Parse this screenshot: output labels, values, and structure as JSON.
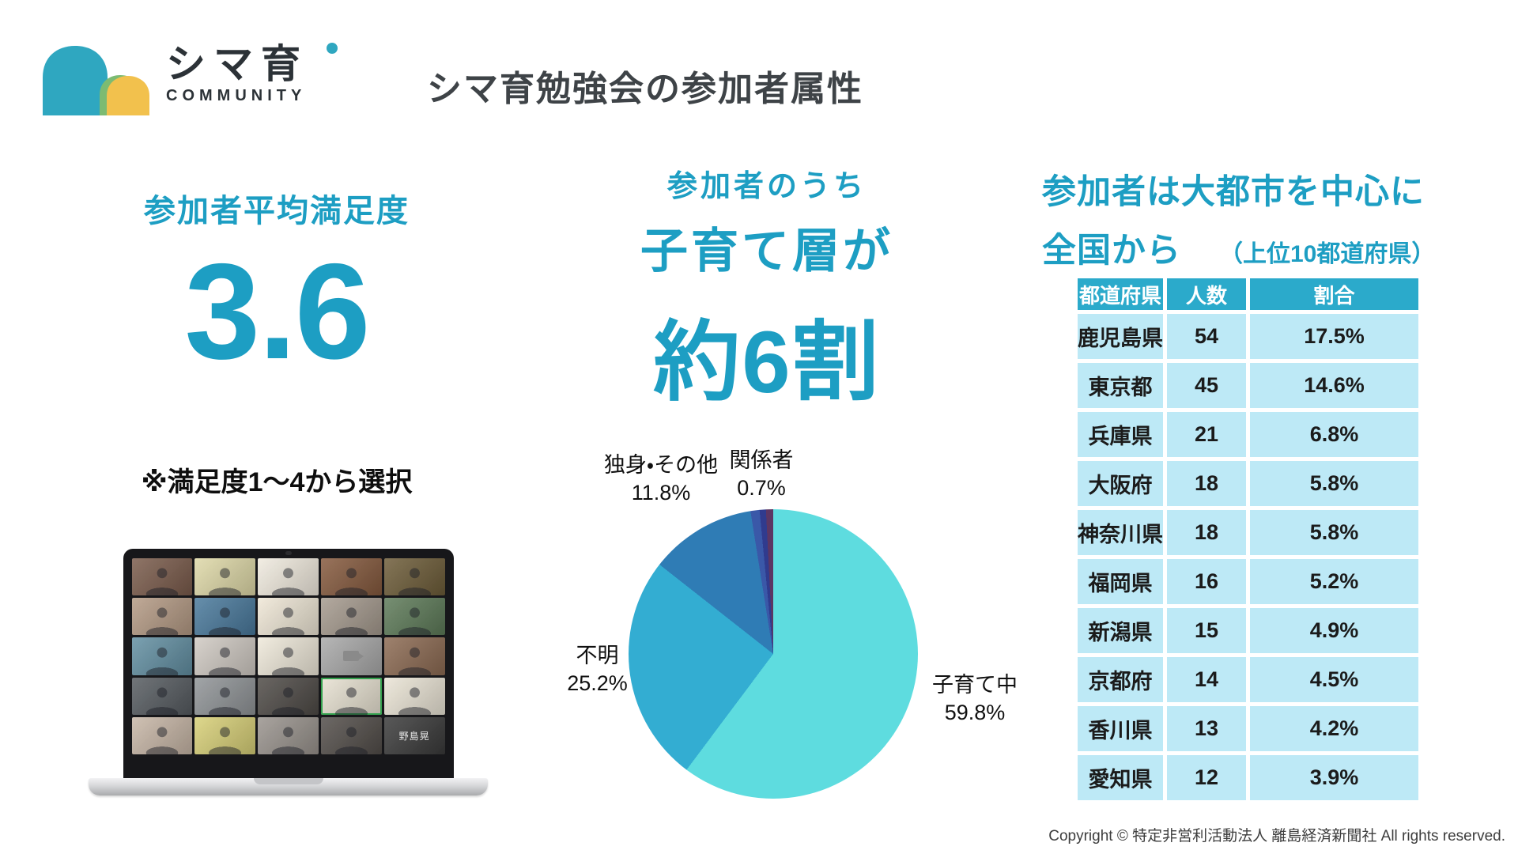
{
  "header": {
    "logo": {
      "jp": "シマ育",
      "en": "COMMUNITY"
    },
    "title": "シマ育勉強会の参加者属性"
  },
  "colors": {
    "accent_teal": "#1D9EC3",
    "title_ink": "#3E4347",
    "logo_teal": "#2FA7C0",
    "logo_yellow": "#F2C14D",
    "logo_green": "#7CBB72",
    "table_header_bg": "#2BAACB",
    "table_row_bg": "#BDE9F6"
  },
  "satisfaction": {
    "heading": "参加者平均満足度",
    "value": "3.6",
    "note": "※満足度1〜4から選択"
  },
  "laptop": {
    "tiles": [
      {
        "c": "#7a5b4b",
        "k": "p"
      },
      {
        "c": "#dfd9a8",
        "k": "p"
      },
      {
        "c": "#f1ebdf",
        "k": "p"
      },
      {
        "c": "#85593d",
        "k": "p"
      },
      {
        "c": "#6d5c38",
        "k": "p"
      },
      {
        "c": "#b49a84",
        "k": "p"
      },
      {
        "c": "#49799c",
        "k": "p"
      },
      {
        "c": "#efe7d6",
        "k": "p"
      },
      {
        "c": "#a59a8e",
        "k": "p"
      },
      {
        "c": "#5d7a58",
        "k": "p"
      },
      {
        "c": "#628fa2",
        "k": "p"
      },
      {
        "c": "#d0cac3",
        "k": "p"
      },
      {
        "c": "#efe9da",
        "k": "p"
      },
      {
        "c": "#a9a9a9",
        "k": "o"
      },
      {
        "c": "#8c6a52",
        "k": "p"
      },
      {
        "c": "#565b60",
        "k": "p"
      },
      {
        "c": "#909497",
        "k": "p"
      },
      {
        "c": "#4e4a46",
        "k": "p"
      },
      {
        "c": "#e8e2d2",
        "k": "a"
      },
      {
        "c": "#ebe5d6",
        "k": "p"
      },
      {
        "c": "#c7b6a6",
        "k": "p"
      },
      {
        "c": "#d8d077",
        "k": "p"
      },
      {
        "c": "#99938d",
        "k": "p"
      },
      {
        "c": "#524d49",
        "k": "p"
      },
      {
        "c": "#3a3a3a",
        "k": "n",
        "label": "野島晃"
      }
    ]
  },
  "demographics": {
    "line1": "参加者のうち",
    "line2": "子育て層が",
    "line3": "約6割"
  },
  "regions": {
    "heading_line1": "参加者は大都市を中心に",
    "heading_line2": "全国から",
    "heading_note": "（上位10都道府県）"
  },
  "chart_data": [
    {
      "type": "pie",
      "title": "参加者のうち子育て層が約6割",
      "direction": "clockwise",
      "start_angle_deg": 0,
      "slices": [
        {
          "label": "子育て中",
          "pct": "59.8%",
          "value": 59.8,
          "color": "#5EDCDF"
        },
        {
          "label": "不明",
          "pct": "25.2%",
          "value": 25.2,
          "color": "#33ADD2"
        },
        {
          "label": "独身・その他",
          "pct": "11.8%",
          "value": 11.8,
          "color": "#2F7CB5"
        },
        {
          "label": "",
          "pct": "",
          "value": 1.0,
          "color": "#3A58A8"
        },
        {
          "label": "関係者",
          "pct": "0.7%",
          "value": 0.7,
          "color": "#303B8E"
        },
        {
          "label": "",
          "pct": "",
          "value": 0.8,
          "color": "#5C3663"
        }
      ]
    },
    {
      "type": "table",
      "title": "上位10都道府県",
      "columns": [
        "都道府県",
        "人数",
        "割合"
      ],
      "rows": [
        [
          "鹿児島県",
          "54",
          "17.5%"
        ],
        [
          "東京都",
          "45",
          "14.6%"
        ],
        [
          "兵庫県",
          "21",
          "6.8%"
        ],
        [
          "大阪府",
          "18",
          "5.8%"
        ],
        [
          "神奈川県",
          "18",
          "5.8%"
        ],
        [
          "福岡県",
          "16",
          "5.2%"
        ],
        [
          "新潟県",
          "15",
          "4.9%"
        ],
        [
          "京都府",
          "14",
          "4.5%"
        ],
        [
          "香川県",
          "13",
          "4.2%"
        ],
        [
          "愛知県",
          "12",
          "3.9%"
        ]
      ]
    }
  ],
  "footer": {
    "copyright": "Copyright © 特定非営利活動法人 離島経済新聞社 All rights reserved."
  }
}
